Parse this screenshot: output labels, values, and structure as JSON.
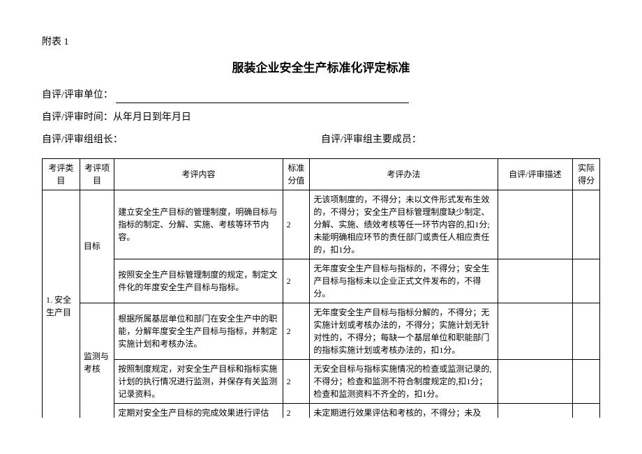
{
  "header": {
    "appendix_label": "附表 1",
    "title": "服装企业安全生产标准化评定标准",
    "unit_label": "自评/评审单位：",
    "time_label": "自评/评审时间：从年月日到年月日",
    "leader_label": "自评/评审组组长：",
    "members_label": "自评/评审组主要成员："
  },
  "table": {
    "columns": [
      "考评类目",
      "考评项目",
      "考评内容",
      "标准分值",
      "考评办法",
      "自评/评审描述",
      "实际得分"
    ],
    "category": "1. 安全生产目",
    "rows": [
      {
        "item": "目标",
        "item_rowspan": 2,
        "content": "建立安全生产目标的管理制度，明确目标与指标的制定、分解、实施、考核等环节内容。",
        "score": "2",
        "method": "无该项制度的，不得分；未以文件形式发布生效的，不得分；安全生产目标管理制度缺少制定、分解、实施、绩效考核等任一环节内容的,扣1分;未能明确相应环节的责任部门或责任人相应责任的，扣1分。",
        "desc": "",
        "actual": ""
      },
      {
        "content": "按照安全生产目标管理制度的规定，制定文件化的年度安全生产目标与指标。",
        "score": "2",
        "method": "无年度安全生产目标与指标的，不得分；安全生产目标与指标未以企业正式文件发布的，不得分。",
        "desc": "",
        "actual": ""
      },
      {
        "item": "监测与考核",
        "item_rowspan": 3,
        "content": "根据所属基层单位和部门在安全生产中的职能，分解年度安全生产目标与指标，并制定实施计划和考核办法。",
        "score": "2",
        "method": "无年度安全生产目标与指标分解的，不得分；无实施计划或考核办法的，不得分；实施计划无针对性的，不得分；每缺一个基层单位和职能部门的指标实施计划或考核办法的，扣1分。",
        "desc": "",
        "actual": ""
      },
      {
        "content": "按照制度规定，对安全生产目标和指标实施计划的执行情况进行监测，并保存有关监测记录资料。",
        "score": "2",
        "method": "无安全目标与指标实施情况的检查或监测记录的,不得分；检查和监测不符合制度规定的,扣1分；检查和监测资料不齐全的，扣1分。",
        "desc": "",
        "actual": ""
      },
      {
        "content": "定期对安全生产目标的完成效果进行评估",
        "score": "2",
        "method": "未定期进行效果评估和考核的，不得分；未及",
        "desc": "",
        "actual": ""
      }
    ]
  }
}
